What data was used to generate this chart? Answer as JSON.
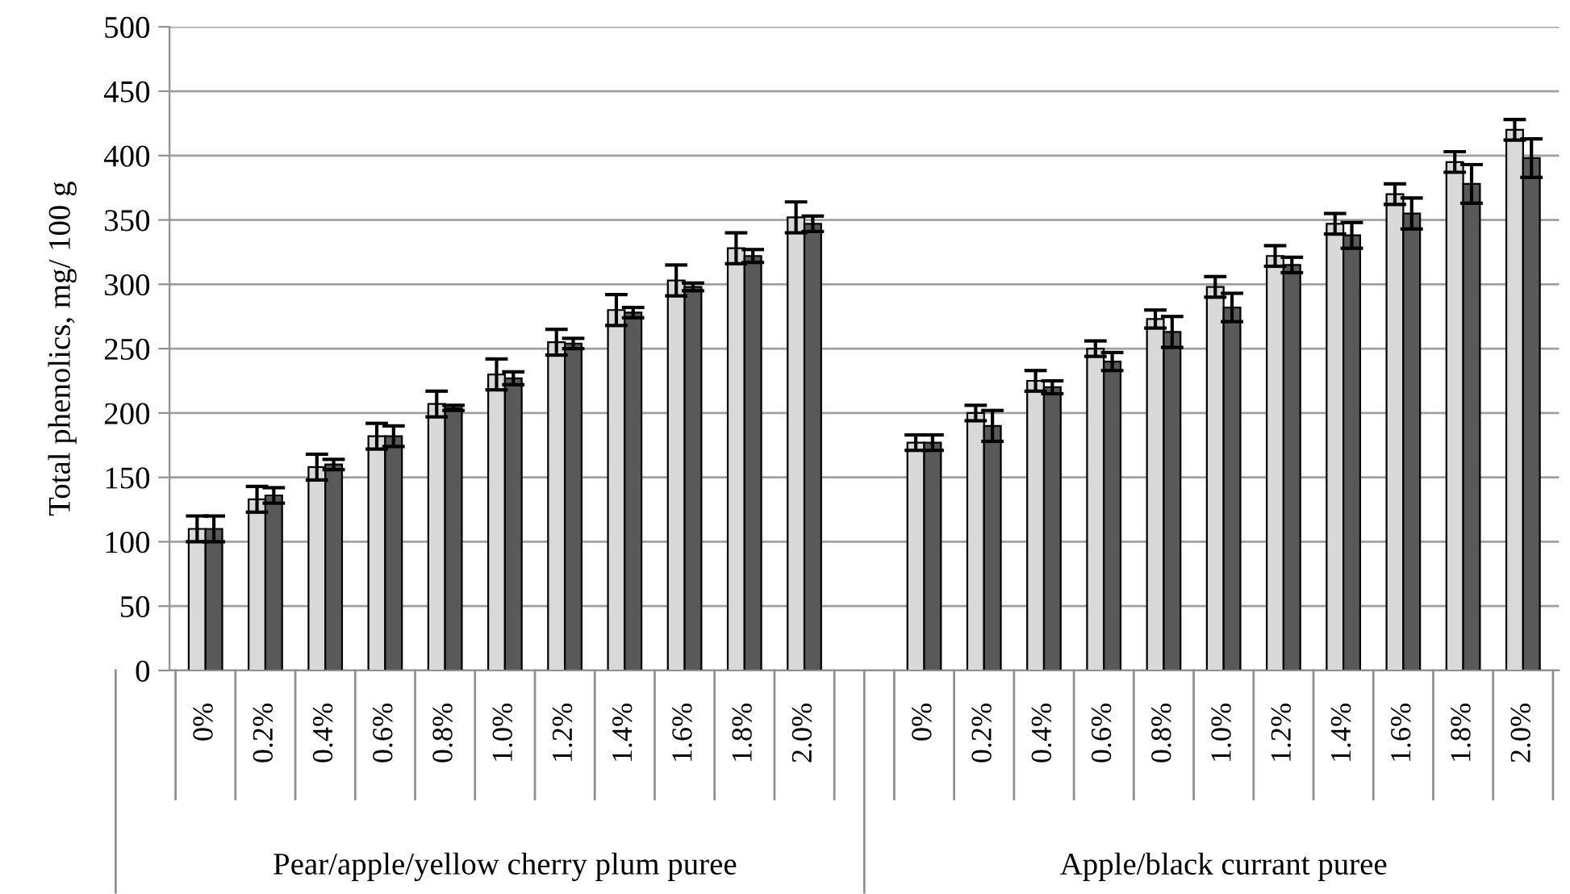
{
  "chart_data": {
    "type": "bar",
    "ylabel": "Total phenolics, mg/ 100 g",
    "categories": [
      "0%",
      "0.2%",
      "0.4%",
      "0.6%",
      "0.8%",
      "1.0%",
      "1.2%",
      "1.4%",
      "1.6%",
      "1.8%",
      "2.0%",
      null,
      "0%",
      "0.2%",
      "0.4%",
      "0.6%",
      "0.8%",
      "1.0%",
      "1.2%",
      "1.4%",
      "1.6%",
      "1.8%",
      "2.0%"
    ],
    "series": [
      {
        "color": "#d9d9d9",
        "values": [
          110,
          133,
          158,
          182,
          207,
          230,
          255,
          280,
          303,
          328,
          352,
          null,
          177,
          200,
          225,
          250,
          273,
          298,
          322,
          347,
          370,
          395,
          420
        ],
        "errors": [
          10,
          10,
          10,
          10,
          10,
          12,
          10,
          12,
          12,
          12,
          12,
          null,
          6,
          6,
          8,
          6,
          7,
          8,
          8,
          8,
          8,
          8,
          8
        ]
      },
      {
        "color": "#595959",
        "values": [
          110,
          136,
          160,
          182,
          204,
          227,
          254,
          278,
          298,
          322,
          347,
          null,
          177,
          190,
          220,
          240,
          263,
          282,
          315,
          338,
          355,
          378,
          398
        ],
        "errors": [
          10,
          6,
          4,
          8,
          2,
          5,
          4,
          4,
          3,
          5,
          6,
          null,
          6,
          12,
          5,
          7,
          12,
          11,
          6,
          10,
          12,
          15,
          15
        ]
      }
    ],
    "annotations": [
      "Pear/apple/yellow cherry plum puree",
      "Apple/black currant puree"
    ],
    "ylim": [
      0,
      500
    ],
    "yticks": [
      0,
      50,
      100,
      150,
      200,
      250,
      300,
      350,
      400,
      450,
      500
    ],
    "grid": "y",
    "legend": false
  }
}
